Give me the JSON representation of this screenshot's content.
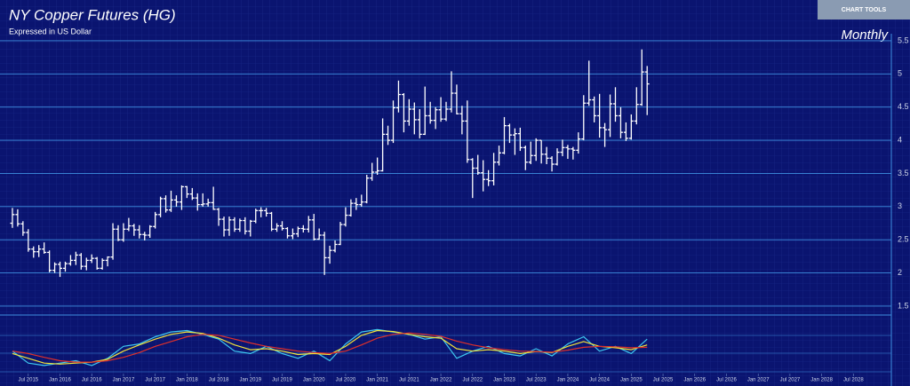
{
  "ui": {
    "chart_tools": "CHART TOOLS"
  },
  "chart_data": [
    {
      "type": "ohlc",
      "title": "NY Copper Futures (HG)",
      "subtitle": "Expressed in US Dollar",
      "annotation": "Monthly",
      "color": "#ffffff",
      "grid": true,
      "grid_color": "#3f8fe0",
      "y_axis_side": "right",
      "ylim": [
        1.37,
        5.6
      ],
      "yticks": [
        1.5,
        2,
        2.5,
        3,
        3.5,
        4,
        4.5,
        5,
        5.5
      ],
      "xlim": [
        "2015-03",
        "2029-02"
      ],
      "xticks": [
        {
          "value": "2015-07",
          "label": "Jul 2015"
        },
        {
          "value": "2016-01",
          "label": "Jan 2016"
        },
        {
          "value": "2016-07",
          "label": "Jul 2016"
        },
        {
          "value": "2017-01",
          "label": "Jan 2017"
        },
        {
          "value": "2017-07",
          "label": "Jul 2017"
        },
        {
          "value": "2018-01",
          "label": "Jan 2018"
        },
        {
          "value": "2018-07",
          "label": "Jul 2018"
        },
        {
          "value": "2019-01",
          "label": "Jan 2019"
        },
        {
          "value": "2019-07",
          "label": "Jul 2019"
        },
        {
          "value": "2020-01",
          "label": "Jan 2020"
        },
        {
          "value": "2020-07",
          "label": "Jul 2020"
        },
        {
          "value": "2021-01",
          "label": "Jan 2021"
        },
        {
          "value": "2021-07",
          "label": "Jul 2021"
        },
        {
          "value": "2022-01",
          "label": "Jan 2022"
        },
        {
          "value": "2022-07",
          "label": "Jul 2022"
        },
        {
          "value": "2023-01",
          "label": "Jan 2023"
        },
        {
          "value": "2023-07",
          "label": "Jul 2023"
        },
        {
          "value": "2024-01",
          "label": "Jan 2024"
        },
        {
          "value": "2024-07",
          "label": "Jul 2024"
        },
        {
          "value": "2025-01",
          "label": "Jan 2025"
        },
        {
          "value": "2025-07",
          "label": "Jul 2025"
        },
        {
          "value": "2026-01",
          "label": "Jan 2026"
        },
        {
          "value": "2026-07",
          "label": "Jul 2026"
        },
        {
          "value": "2027-01",
          "label": "Jan 2027"
        },
        {
          "value": "2027-07",
          "label": "Jul 2027"
        },
        {
          "value": "2028-01",
          "label": "Jan 2028"
        },
        {
          "value": "2028-07",
          "label": "Jul 2028"
        }
      ],
      "x": [
        "2015-04",
        "2015-05",
        "2015-06",
        "2015-07",
        "2015-08",
        "2015-09",
        "2015-10",
        "2015-11",
        "2015-12",
        "2016-01",
        "2016-02",
        "2016-03",
        "2016-04",
        "2016-05",
        "2016-06",
        "2016-07",
        "2016-08",
        "2016-09",
        "2016-10",
        "2016-11",
        "2016-12",
        "2017-01",
        "2017-02",
        "2017-03",
        "2017-04",
        "2017-05",
        "2017-06",
        "2017-07",
        "2017-08",
        "2017-09",
        "2017-10",
        "2017-11",
        "2017-12",
        "2018-01",
        "2018-02",
        "2018-03",
        "2018-04",
        "2018-05",
        "2018-06",
        "2018-07",
        "2018-08",
        "2018-09",
        "2018-10",
        "2018-11",
        "2018-12",
        "2019-01",
        "2019-02",
        "2019-03",
        "2019-04",
        "2019-05",
        "2019-06",
        "2019-07",
        "2019-08",
        "2019-09",
        "2019-10",
        "2019-11",
        "2019-12",
        "2020-01",
        "2020-02",
        "2020-03",
        "2020-04",
        "2020-05",
        "2020-06",
        "2020-07",
        "2020-08",
        "2020-09",
        "2020-10",
        "2020-11",
        "2020-12",
        "2021-01",
        "2021-02",
        "2021-03",
        "2021-04",
        "2021-05",
        "2021-06",
        "2021-07",
        "2021-08",
        "2021-09",
        "2021-10",
        "2021-11",
        "2021-12",
        "2022-01",
        "2022-02",
        "2022-03",
        "2022-04",
        "2022-05",
        "2022-06",
        "2022-07",
        "2022-08",
        "2022-09",
        "2022-10",
        "2022-11",
        "2022-12",
        "2023-01",
        "2023-02",
        "2023-03",
        "2023-04",
        "2023-05",
        "2023-06",
        "2023-07",
        "2023-08",
        "2023-09",
        "2023-10",
        "2023-11",
        "2023-12",
        "2024-01",
        "2024-02",
        "2024-03",
        "2024-04",
        "2024-05",
        "2024-06",
        "2024-07",
        "2024-08",
        "2024-09",
        "2024-10",
        "2024-11",
        "2024-12",
        "2025-01",
        "2025-02",
        "2025-03",
        "2025-04"
      ],
      "open": [
        2.75,
        2.88,
        2.74,
        2.61,
        2.36,
        2.32,
        2.36,
        2.31,
        2.04,
        2.13,
        2.07,
        2.14,
        2.19,
        2.27,
        2.1,
        2.19,
        2.22,
        2.07,
        2.19,
        2.24,
        2.66,
        2.5,
        2.66,
        2.71,
        2.65,
        2.58,
        2.57,
        2.7,
        2.88,
        3.12,
        2.95,
        3.1,
        3.07,
        3.3,
        3.19,
        3.13,
        3.03,
        3.04,
        3.06,
        2.96,
        2.81,
        2.65,
        2.8,
        2.66,
        2.79,
        2.63,
        2.78,
        2.94,
        2.94,
        2.9,
        2.66,
        2.71,
        2.67,
        2.56,
        2.59,
        2.67,
        2.66,
        2.8,
        2.51,
        2.57,
        2.23,
        2.34,
        2.43,
        2.73,
        2.87,
        3.05,
        3.03,
        3.07,
        3.43,
        3.52,
        3.54,
        4.09,
        4.0,
        4.49,
        4.69,
        4.29,
        4.47,
        4.31,
        4.09,
        4.37,
        4.3,
        4.46,
        4.32,
        4.47,
        4.71,
        4.4,
        4.29,
        3.71,
        3.58,
        3.51,
        3.41,
        3.39,
        3.67,
        3.81,
        4.22,
        4.08,
        4.1,
        3.89,
        3.67,
        3.77,
        4.0,
        3.79,
        3.73,
        3.64,
        3.82,
        3.89,
        3.87,
        3.85,
        4.02,
        4.56,
        4.61,
        4.37,
        4.19,
        4.16,
        4.55,
        4.37,
        4.12,
        4.03,
        4.29,
        4.54,
        5.03
      ],
      "high": [
        2.98,
        2.96,
        2.78,
        2.66,
        2.4,
        2.42,
        2.46,
        2.34,
        2.16,
        2.17,
        2.17,
        2.27,
        2.32,
        2.3,
        2.23,
        2.28,
        2.24,
        2.22,
        2.25,
        2.75,
        2.72,
        2.75,
        2.83,
        2.74,
        2.72,
        2.62,
        2.72,
        2.92,
        3.15,
        3.17,
        3.24,
        3.17,
        3.32,
        3.31,
        3.28,
        3.2,
        3.2,
        3.12,
        3.3,
        2.98,
        2.85,
        2.85,
        2.84,
        2.82,
        2.84,
        2.8,
        2.97,
        2.99,
        2.98,
        2.92,
        2.75,
        2.78,
        2.69,
        2.67,
        2.7,
        2.72,
        2.86,
        2.89,
        2.67,
        2.62,
        2.41,
        2.49,
        2.77,
        2.99,
        3.11,
        3.13,
        3.18,
        3.48,
        3.66,
        3.74,
        4.33,
        4.22,
        4.6,
        4.9,
        4.71,
        4.62,
        4.57,
        4.47,
        4.81,
        4.58,
        4.5,
        4.65,
        4.58,
        5.04,
        4.84,
        4.52,
        4.6,
        3.73,
        3.78,
        3.7,
        3.55,
        3.81,
        3.92,
        4.35,
        4.25,
        4.18,
        4.19,
        3.92,
        3.98,
        4.03,
        4.0,
        3.9,
        3.76,
        3.88,
        4.01,
        3.93,
        3.9,
        4.12,
        4.68,
        5.2,
        4.66,
        4.7,
        4.26,
        4.69,
        4.8,
        4.5,
        4.27,
        4.39,
        4.8,
        5.37,
        5.12
      ],
      "low": [
        2.68,
        2.7,
        2.56,
        2.32,
        2.23,
        2.24,
        2.29,
        2.01,
        2.0,
        1.94,
        2.02,
        2.11,
        2.12,
        2.05,
        2.04,
        2.15,
        2.05,
        2.05,
        2.1,
        2.2,
        2.48,
        2.47,
        2.63,
        2.56,
        2.52,
        2.49,
        2.53,
        2.67,
        2.84,
        2.91,
        2.92,
        3.0,
        2.95,
        3.13,
        3.1,
        2.94,
        3.0,
        3.0,
        2.95,
        2.71,
        2.55,
        2.56,
        2.62,
        2.62,
        2.58,
        2.55,
        2.75,
        2.84,
        2.85,
        2.63,
        2.62,
        2.64,
        2.52,
        2.51,
        2.54,
        2.61,
        2.61,
        2.49,
        2.5,
        1.97,
        2.14,
        2.31,
        2.42,
        2.7,
        2.85,
        2.95,
        3.0,
        3.05,
        3.39,
        3.48,
        3.53,
        3.93,
        3.96,
        4.42,
        4.12,
        4.22,
        4.09,
        4.03,
        4.08,
        4.25,
        4.17,
        4.28,
        4.29,
        4.42,
        4.39,
        4.09,
        3.66,
        3.13,
        3.48,
        3.23,
        3.31,
        3.32,
        3.62,
        3.79,
        3.96,
        3.78,
        3.84,
        3.55,
        3.64,
        3.69,
        3.65,
        3.64,
        3.53,
        3.62,
        3.76,
        3.72,
        3.71,
        3.8,
        4.0,
        4.52,
        4.27,
        4.04,
        3.9,
        4.05,
        4.28,
        4.03,
        3.99,
        4.01,
        4.24,
        4.52,
        4.38
      ],
      "close": [
        2.88,
        2.74,
        2.61,
        2.36,
        2.32,
        2.36,
        2.31,
        2.04,
        2.13,
        2.07,
        2.14,
        2.19,
        2.27,
        2.1,
        2.19,
        2.22,
        2.07,
        2.19,
        2.24,
        2.66,
        2.5,
        2.66,
        2.71,
        2.65,
        2.58,
        2.57,
        2.7,
        2.88,
        3.12,
        2.95,
        3.1,
        3.07,
        3.3,
        3.19,
        3.13,
        3.03,
        3.04,
        3.06,
        2.96,
        2.81,
        2.65,
        2.8,
        2.66,
        2.79,
        2.63,
        2.78,
        2.94,
        2.94,
        2.9,
        2.66,
        2.71,
        2.67,
        2.56,
        2.59,
        2.67,
        2.66,
        2.8,
        2.51,
        2.57,
        2.23,
        2.34,
        2.43,
        2.73,
        2.87,
        3.05,
        3.03,
        3.07,
        3.43,
        3.52,
        3.54,
        4.09,
        4.0,
        4.49,
        4.69,
        4.29,
        4.47,
        4.31,
        4.09,
        4.37,
        4.3,
        4.46,
        4.32,
        4.47,
        4.71,
        4.4,
        4.29,
        3.71,
        3.58,
        3.51,
        3.41,
        3.39,
        3.67,
        3.81,
        4.22,
        4.08,
        4.1,
        3.89,
        3.67,
        3.77,
        4.0,
        3.79,
        3.73,
        3.64,
        3.82,
        3.89,
        3.87,
        3.85,
        4.02,
        4.56,
        4.61,
        4.37,
        4.19,
        4.16,
        4.55,
        4.37,
        4.12,
        4.03,
        4.29,
        4.54,
        5.03,
        4.85
      ]
    },
    {
      "type": "line",
      "ylim": [
        0,
        100
      ],
      "x": [
        "2015-04",
        "2015-07",
        "2015-10",
        "2016-01",
        "2016-04",
        "2016-07",
        "2016-10",
        "2017-01",
        "2017-04",
        "2017-07",
        "2017-10",
        "2018-01",
        "2018-04",
        "2018-07",
        "2018-10",
        "2019-01",
        "2019-04",
        "2019-07",
        "2019-10",
        "2020-01",
        "2020-04",
        "2020-07",
        "2020-10",
        "2021-01",
        "2021-04",
        "2021-07",
        "2021-10",
        "2022-01",
        "2022-04",
        "2022-07",
        "2022-10",
        "2023-01",
        "2023-04",
        "2023-07",
        "2023-10",
        "2024-01",
        "2024-04",
        "2024-07",
        "2024-10",
        "2025-01",
        "2025-04"
      ],
      "series": [
        {
          "color": "#3ec8f0",
          "values": [
            45,
            20,
            15,
            20,
            25,
            15,
            30,
            55,
            60,
            75,
            85,
            88,
            80,
            70,
            45,
            40,
            55,
            40,
            30,
            45,
            25,
            60,
            85,
            90,
            85,
            80,
            70,
            75,
            30,
            45,
            55,
            40,
            35,
            50,
            35,
            60,
            75,
            45,
            55,
            40,
            70
          ]
        },
        {
          "color": "#f2e33a",
          "values": [
            40,
            30,
            20,
            18,
            20,
            22,
            28,
            45,
            58,
            70,
            80,
            85,
            82,
            72,
            58,
            48,
            50,
            45,
            38,
            40,
            38,
            55,
            78,
            88,
            86,
            80,
            75,
            72,
            50,
            45,
            48,
            45,
            40,
            44,
            42,
            55,
            65,
            55,
            52,
            48,
            58
          ]
        },
        {
          "color": "#e0302a",
          "values": [
            45,
            40,
            32,
            25,
            22,
            22,
            25,
            32,
            42,
            55,
            65,
            75,
            80,
            78,
            70,
            62,
            55,
            50,
            45,
            42,
            40,
            45,
            58,
            72,
            80,
            83,
            80,
            76,
            66,
            58,
            52,
            48,
            45,
            44,
            43,
            47,
            53,
            55,
            54,
            52,
            53
          ]
        }
      ]
    }
  ]
}
